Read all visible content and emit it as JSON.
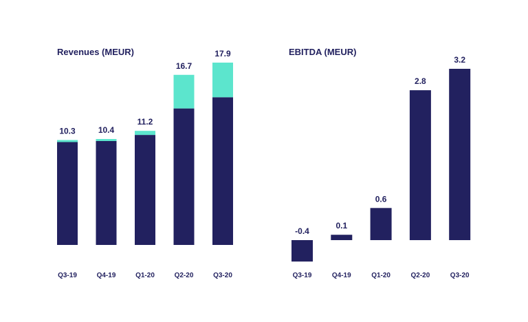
{
  "colors": {
    "primary": "#22215f",
    "secondary": "#5ce5cd",
    "text": "#22215f",
    "background": "#ffffff"
  },
  "chart_data": [
    {
      "type": "bar",
      "title": "Revenues (MEUR)",
      "categories": [
        "Q3-19",
        "Q4-19",
        "Q1-20",
        "Q2-20",
        "Q3-20"
      ],
      "stacked": true,
      "series": [
        {
          "values": [
            10.1,
            10.2,
            10.8,
            13.4,
            14.5
          ]
        },
        {
          "values": [
            0.2,
            0.2,
            0.4,
            3.3,
            3.4
          ]
        }
      ],
      "totals": [
        10.3,
        10.4,
        11.2,
        16.7,
        17.9
      ],
      "value_labels": [
        "10.3",
        "10.4",
        "11.2",
        "16.7",
        "17.9"
      ],
      "xlabel": "",
      "ylabel": "",
      "ylim": [
        0,
        17.9
      ],
      "grid": false,
      "legend": "none"
    },
    {
      "type": "bar",
      "title": "EBITDA (MEUR)",
      "categories": [
        "Q3-19",
        "Q4-19",
        "Q1-20",
        "Q2-20",
        "Q3-20"
      ],
      "values": [
        -0.4,
        0.1,
        0.6,
        2.8,
        3.2
      ],
      "value_labels": [
        "-0.4",
        "0.1",
        "0.6",
        "2.8",
        "3.2"
      ],
      "xlabel": "",
      "ylabel": "",
      "ylim": [
        -0.4,
        3.2
      ],
      "grid": false,
      "legend": "none"
    }
  ]
}
